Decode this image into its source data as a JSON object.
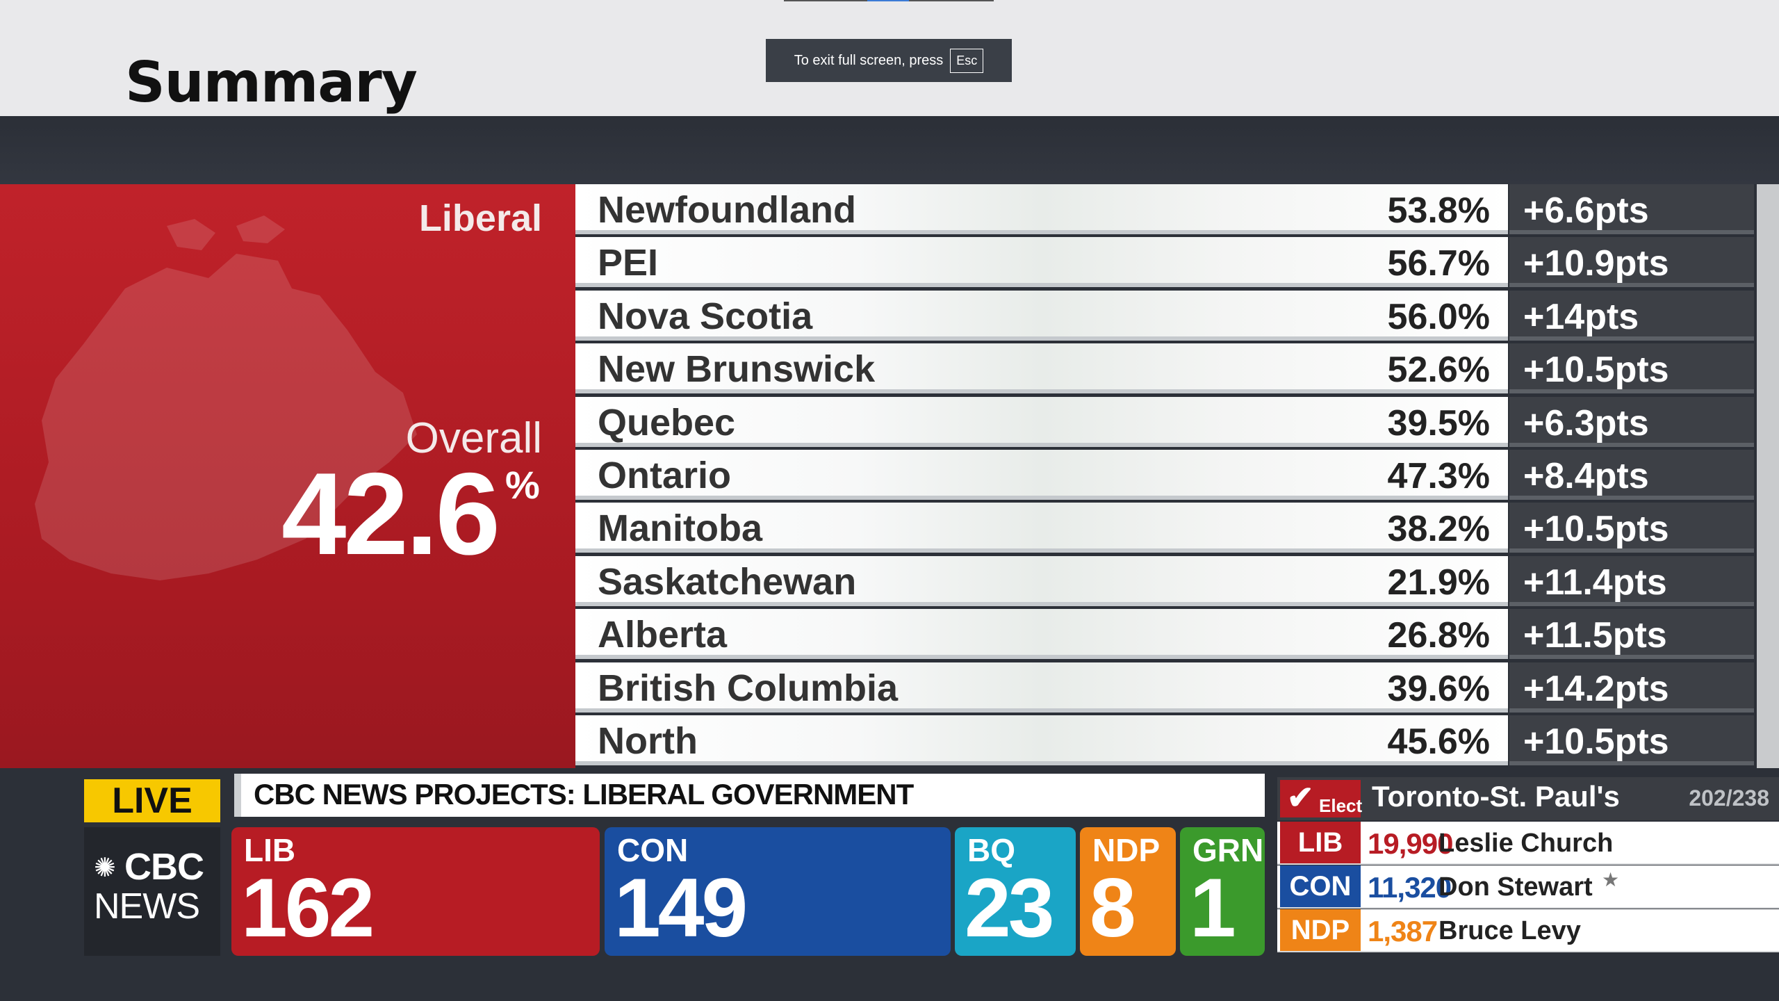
{
  "header": {
    "title": "Summary"
  },
  "fullscreen_notice": {
    "text": "To exit full screen, press",
    "key": "Esc"
  },
  "panel": {
    "party": "Liberal",
    "overall_label": "Overall",
    "overall_value": "42.6",
    "overall_unit": "%"
  },
  "rows": [
    {
      "region": "Newfoundland",
      "pct": "53.8%",
      "change": "+6.6pts"
    },
    {
      "region": "PEI",
      "pct": "56.7%",
      "change": "+10.9pts"
    },
    {
      "region": "Nova Scotia",
      "pct": "56.0%",
      "change": "+14pts"
    },
    {
      "region": "New Brunswick",
      "pct": "52.6%",
      "change": "+10.5pts"
    },
    {
      "region": "Quebec",
      "pct": "39.5%",
      "change": "+6.3pts"
    },
    {
      "region": "Ontario",
      "pct": "47.3%",
      "change": "+8.4pts"
    },
    {
      "region": "Manitoba",
      "pct": "38.2%",
      "change": "+10.5pts"
    },
    {
      "region": "Saskatchewan",
      "pct": "21.9%",
      "change": "+11.4pts"
    },
    {
      "region": "Alberta",
      "pct": "26.8%",
      "change": "+11.5pts"
    },
    {
      "region": "British Columbia",
      "pct": "39.6%",
      "change": "+14.2pts"
    },
    {
      "region": "North",
      "pct": "45.6%",
      "change": "+10.5pts"
    }
  ],
  "ticker": {
    "live": "LIVE",
    "logo_cbc": "CBC",
    "logo_news": "NEWS",
    "headline": "CBC NEWS PROJECTS: LIBERAL GOVERNMENT",
    "seats": [
      {
        "party": "LIB",
        "count": "162",
        "color": "#b71c24"
      },
      {
        "party": "CON",
        "count": "149",
        "color": "#1a4ea0"
      },
      {
        "party": "BQ",
        "count": "23",
        "color": "#1aa5c6"
      },
      {
        "party": "NDP",
        "count": "8",
        "color": "#ef8417"
      },
      {
        "party": "GRN",
        "count": "1",
        "color": "#3b9a2c"
      }
    ]
  },
  "riding": {
    "elect_label": "Elect",
    "name": "Toronto-St. Paul's",
    "count": "202/238",
    "candidates": [
      {
        "party": "LIB",
        "votes": "19,990",
        "name": "Leslie Church",
        "color": "#b71c24",
        "vote_color": "#b71c24",
        "incumbent": false
      },
      {
        "party": "CON",
        "votes": "11,320",
        "name": "Don Stewart",
        "color": "#1a4ea0",
        "vote_color": "#1a4ea0",
        "incumbent": true
      },
      {
        "party": "NDP",
        "votes": "1,387",
        "name": "Bruce Levy",
        "color": "#ef8417",
        "vote_color": "#ef8417",
        "incumbent": false
      }
    ]
  }
}
